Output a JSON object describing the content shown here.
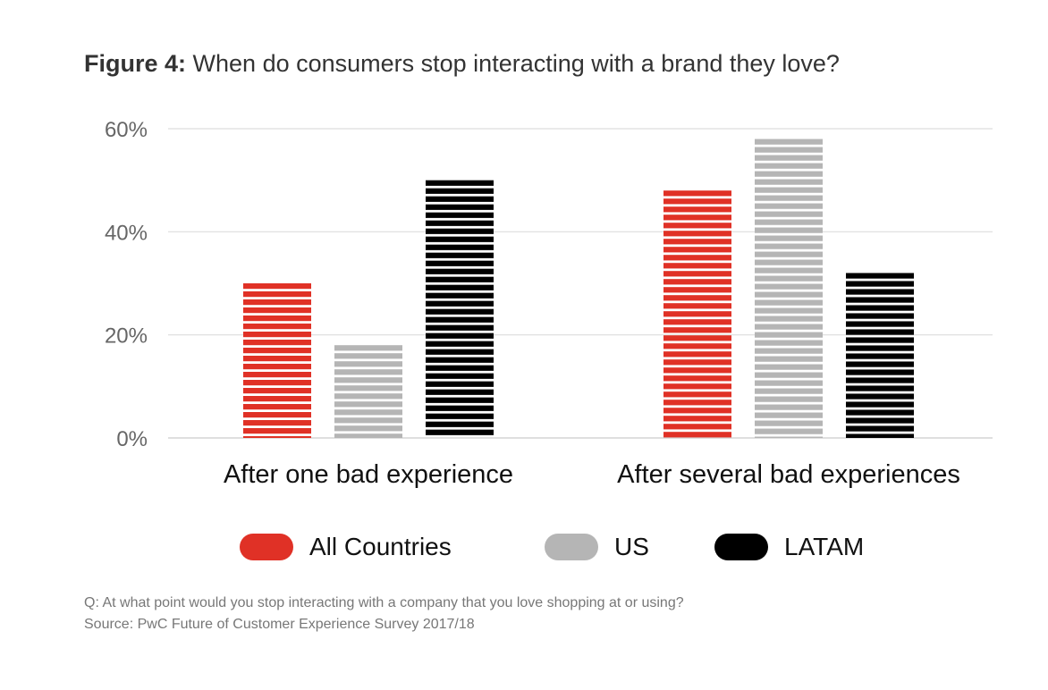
{
  "figure": {
    "title_prefix": "Figure 4:",
    "title_text": "When do consumers stop interacting with a brand they love?"
  },
  "colors": {
    "all_countries": "#e03126",
    "us": "#b5b5b5",
    "latam": "#000000",
    "gridline": "#dddddd"
  },
  "chart_data": {
    "type": "bar",
    "categories": [
      "After one bad experience",
      "After several bad experiences"
    ],
    "series": [
      {
        "name": "All Countries",
        "values": [
          30,
          48
        ]
      },
      {
        "name": "US",
        "values": [
          18,
          58
        ]
      },
      {
        "name": "LATAM",
        "values": [
          50,
          32
        ]
      }
    ],
    "ylim": [
      0,
      60
    ],
    "yticks": [
      "0%",
      "20%",
      "40%",
      "60%"
    ],
    "ytick_values": [
      0,
      20,
      40,
      60
    ],
    "grid": true,
    "legend_placement": "bottom"
  },
  "legend": [
    {
      "label": "All Countries",
      "color_key": "all_countries"
    },
    {
      "label": "US",
      "color_key": "us"
    },
    {
      "label": "LATAM",
      "color_key": "latam"
    }
  ],
  "footnotes": {
    "question": "Q: At what point would you stop interacting with a company that you love shopping at or using?",
    "source": "Source: PwC Future of Customer Experience Survey 2017/18"
  }
}
